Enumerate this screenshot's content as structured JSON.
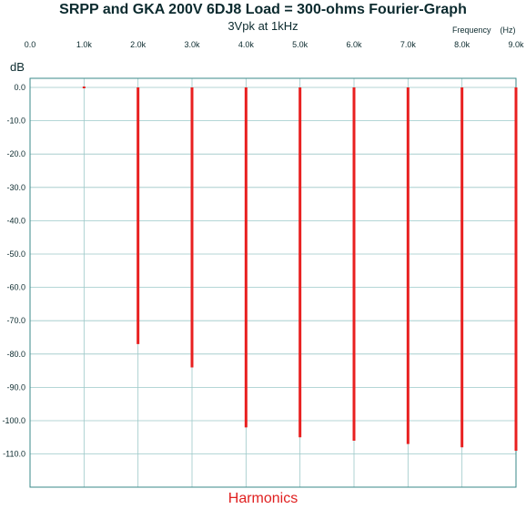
{
  "chart_data": {
    "type": "bar",
    "title": "SRPP and GKA 200V 6DJ8 Load = 300-ohms Fourier-Graph",
    "subtitle": "3Vpk at 1kHz",
    "xlabel": "Frequency",
    "xunit": "(Hz)",
    "ylabel": "dB",
    "caption": "Harmonics",
    "xlim": [
      0,
      9000
    ],
    "ylim": [
      -118,
      0
    ],
    "xticks": [
      "0.0",
      "1.0k",
      "2.0k",
      "3.0k",
      "4.0k",
      "5.0k",
      "6.0k",
      "7.0k",
      "8.0k",
      "9.0k"
    ],
    "yticks": [
      "0.0",
      "-10.0",
      "-20.0",
      "-30.0",
      "-40.0",
      "-50.0",
      "-60.0",
      "-70.0",
      "-80.0",
      "-90.0",
      "-100.0",
      "-110.0"
    ],
    "grid": true,
    "bar_color": "#e82020",
    "x": [
      1000,
      2000,
      3000,
      4000,
      5000,
      6000,
      7000,
      8000,
      9000
    ],
    "values": [
      0,
      -77,
      -84,
      -102,
      -105,
      -106,
      -107,
      -108,
      -109
    ]
  }
}
